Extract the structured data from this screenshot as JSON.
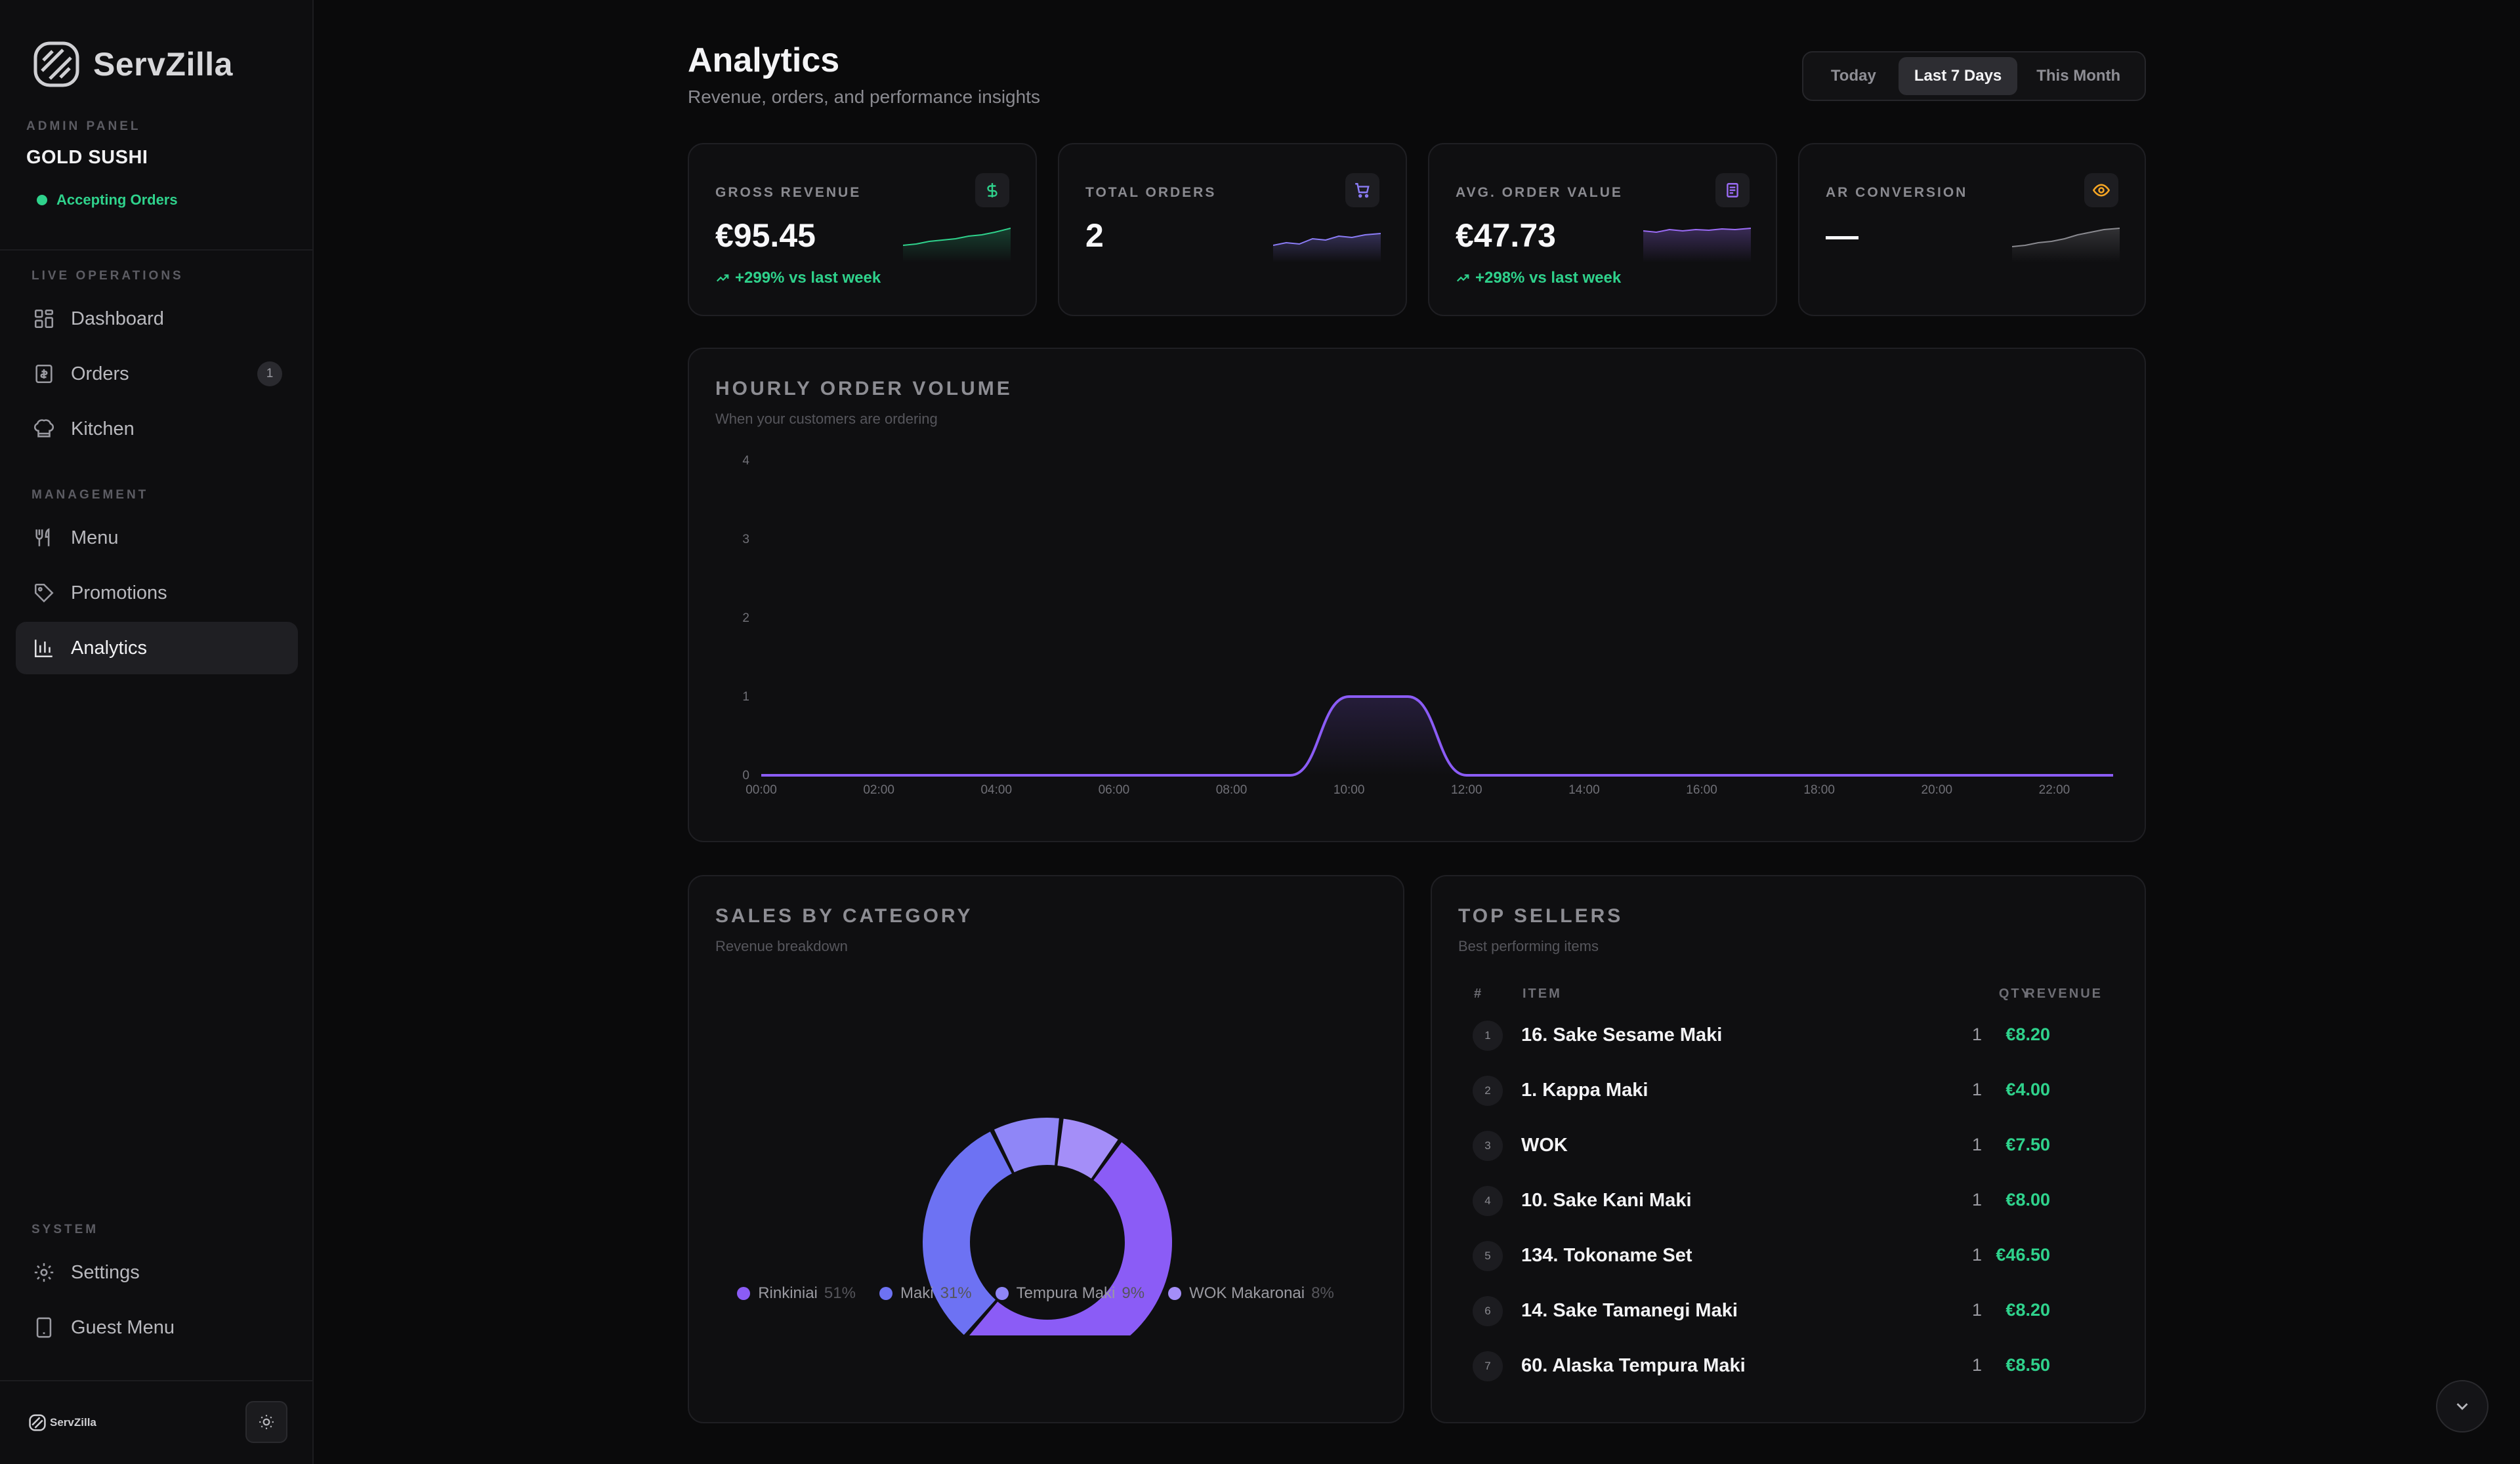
{
  "brand": {
    "name": "ServZilla",
    "footer_name": "ServZilla"
  },
  "store": {
    "panel_label": "ADMIN PANEL",
    "name": "GOLD SUSHI",
    "status": "Accepting Orders",
    "status_color": "#2fd28c"
  },
  "sidebar": {
    "sections": [
      {
        "label": "LIVE OPERATIONS"
      },
      {
        "label": "MANAGEMENT"
      },
      {
        "label": "SYSTEM"
      }
    ],
    "items": [
      {
        "label": "Dashboard",
        "icon": "dashboard-icon"
      },
      {
        "label": "Orders",
        "icon": "receipt-icon",
        "badge": "1"
      },
      {
        "label": "Kitchen",
        "icon": "chef-hat-icon"
      },
      {
        "label": "Menu",
        "icon": "utensils-icon"
      },
      {
        "label": "Promotions",
        "icon": "tag-icon"
      },
      {
        "label": "Analytics",
        "icon": "bar-chart-icon",
        "active": true
      },
      {
        "label": "Settings",
        "icon": "gear-icon"
      },
      {
        "label": "Guest Menu",
        "icon": "tablet-icon"
      }
    ]
  },
  "header": {
    "title": "Analytics",
    "subtitle": "Revenue, orders, and performance insights",
    "ranges": [
      "Today",
      "Last 7 Days",
      "This Month"
    ],
    "selected_range": "Last 7 Days"
  },
  "kpis": [
    {
      "label": "GROSS REVENUE",
      "value": "€95.45",
      "change": "+299% vs last week",
      "icon": "dollar-icon",
      "accent": "#2fd28c"
    },
    {
      "label": "TOTAL ORDERS",
      "value": "2",
      "change": "",
      "icon": "cart-icon",
      "accent": "#8b7cf6"
    },
    {
      "label": "AVG. ORDER VALUE",
      "value": "€47.73",
      "change": "+298% vs last week",
      "icon": "receipt-icon",
      "accent": "#9b6cf6"
    },
    {
      "label": "AR CONVERSION",
      "value": "—",
      "change": "",
      "icon": "eye-icon",
      "accent": "#f5a524"
    }
  ],
  "hourly": {
    "title": "HOURLY ORDER VOLUME",
    "subtitle": "When your customers are ordering"
  },
  "sales": {
    "title": "SALES BY CATEGORY",
    "subtitle": "Revenue breakdown"
  },
  "top_sellers": {
    "title": "TOP SELLERS",
    "subtitle": "Best performing items",
    "columns": {
      "rank": "#",
      "item": "ITEM",
      "qty": "QTY",
      "revenue": "REVENUE"
    },
    "rows": [
      {
        "rank": "1",
        "item": "16. Sake Sesame Maki",
        "qty": "1",
        "revenue": "€8.20"
      },
      {
        "rank": "2",
        "item": "1. Kappa Maki",
        "qty": "1",
        "revenue": "€4.00"
      },
      {
        "rank": "3",
        "item": "WOK",
        "qty": "1",
        "revenue": "€7.50"
      },
      {
        "rank": "4",
        "item": "10. Sake Kani Maki",
        "qty": "1",
        "revenue": "€8.00"
      },
      {
        "rank": "5",
        "item": "134. Tokoname Set",
        "qty": "1",
        "revenue": "€46.50"
      },
      {
        "rank": "6",
        "item": "14. Sake Tamanegi Maki",
        "qty": "1",
        "revenue": "€8.20"
      },
      {
        "rank": "7",
        "item": "60. Alaska Tempura Maki",
        "qty": "1",
        "revenue": "€8.50"
      }
    ]
  },
  "chart_data": [
    {
      "type": "area",
      "title": "HOURLY ORDER VOLUME",
      "x": [
        "00:00",
        "01:00",
        "02:00",
        "03:00",
        "04:00",
        "05:00",
        "06:00",
        "07:00",
        "08:00",
        "09:00",
        "10:00",
        "11:00",
        "12:00",
        "13:00",
        "14:00",
        "15:00",
        "16:00",
        "17:00",
        "18:00",
        "19:00",
        "20:00",
        "21:00",
        "22:00",
        "23:00"
      ],
      "xticks": [
        "00:00",
        "02:00",
        "04:00",
        "06:00",
        "08:00",
        "10:00",
        "12:00",
        "14:00",
        "16:00",
        "18:00",
        "20:00",
        "22:00"
      ],
      "values": [
        0,
        0,
        0,
        0,
        0,
        0,
        0,
        0,
        0,
        0,
        1,
        1,
        0,
        0,
        0,
        0,
        0,
        0,
        0,
        0,
        0,
        0,
        0,
        0
      ],
      "ylim": [
        0,
        4
      ],
      "yticks": [
        0,
        1,
        2,
        3,
        4
      ],
      "color": "#8b5cf6",
      "grid": false
    },
    {
      "type": "pie",
      "title": "SALES BY CATEGORY",
      "categories": [
        "Rinkiniai",
        "Maki",
        "Tempura Maki",
        "WOK Makaronai"
      ],
      "labels": [
        "51%",
        "31%",
        "9%",
        "8%"
      ],
      "values": [
        51,
        31,
        9,
        8
      ],
      "colors": [
        "#8b5cf6",
        "#6d72f3",
        "#8f86f7",
        "#a48ef8"
      ],
      "donut": true
    }
  ]
}
